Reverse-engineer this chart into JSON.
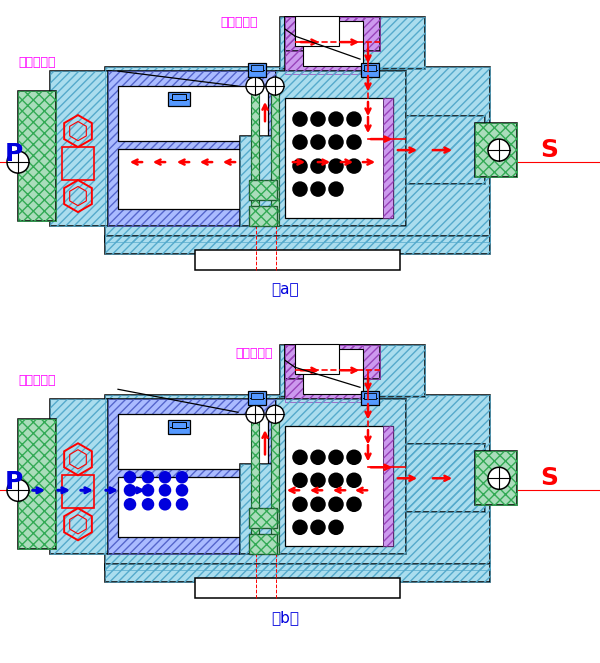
{
  "bg": "#ffffff",
  "cyan": "#aaddee",
  "cyan2": "#88ccdd",
  "purple": "#cc99ee",
  "purple2": "#bb88dd",
  "blue_hatch": "#aabbff",
  "blue_hatch2": "#8899ee",
  "green": "#aaddbb",
  "green2": "#88cc99",
  "red": "#ff0000",
  "blue": "#0000dd",
  "magenta": "#ff00ff",
  "black": "#000000",
  "white": "#ffffff",
  "label_a": "（a）",
  "label_b": "（b）",
  "label_P": "P",
  "label_S": "S",
  "label_odd": "奇数档气管",
  "label_even": "偶数档气管"
}
